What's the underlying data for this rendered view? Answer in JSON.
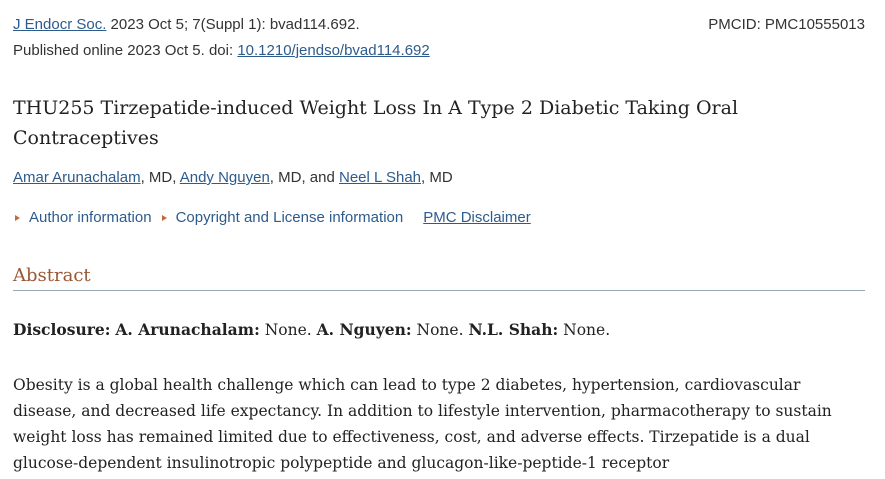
{
  "citation": {
    "journal": "J Endocr Soc.",
    "details": " 2023 Oct 5; 7(Suppl 1): bvad114.692.",
    "pmcid": "PMCID: PMC10555013"
  },
  "publication": {
    "prefix": "Published online 2023 Oct 5. doi: ",
    "doi": "10.1210/jendso/bvad114.692"
  },
  "title": "THU255 Tirzepatide-induced Weight Loss In A Type 2 Diabetic Taking Oral Contraceptives",
  "authors": [
    {
      "name": "Amar Arunachalam",
      "suffix": ", MD, "
    },
    {
      "name": "Andy Nguyen",
      "suffix": ", MD, and "
    },
    {
      "name": "Neel L Shah",
      "suffix": ", MD"
    }
  ],
  "info_links": {
    "author_information": "Author information",
    "copyright": "Copyright and License information",
    "disclaimer": "PMC Disclaimer"
  },
  "abstract": {
    "heading": "Abstract",
    "disclosure": {
      "label": "Disclosure:",
      "entries": [
        {
          "name": "A. Arunachalam:",
          "value": " None. "
        },
        {
          "name": "A. Nguyen:",
          "value": " None. "
        },
        {
          "name": "N.L. Shah:",
          "value": " None."
        }
      ]
    },
    "paragraph": "Obesity is a global health challenge which can lead to type 2 diabetes, hypertension, cardiovascular disease, and decreased life expectancy. In addition to lifestyle intervention, pharmacotherapy to sustain weight loss has remained limited due to effectiveness, cost, and adverse effects. Tirzepatide is a dual glucose-dependent insulinotropic polypeptide and glucagon-like-peptide-1 receptor"
  },
  "colors": {
    "link": "#2d5b8c",
    "heading_accent": "#985735",
    "toggle_triangle": "#c46a3a",
    "rule": "#97a7bb"
  },
  "icons": {
    "toggle": "triangle-right-icon"
  }
}
